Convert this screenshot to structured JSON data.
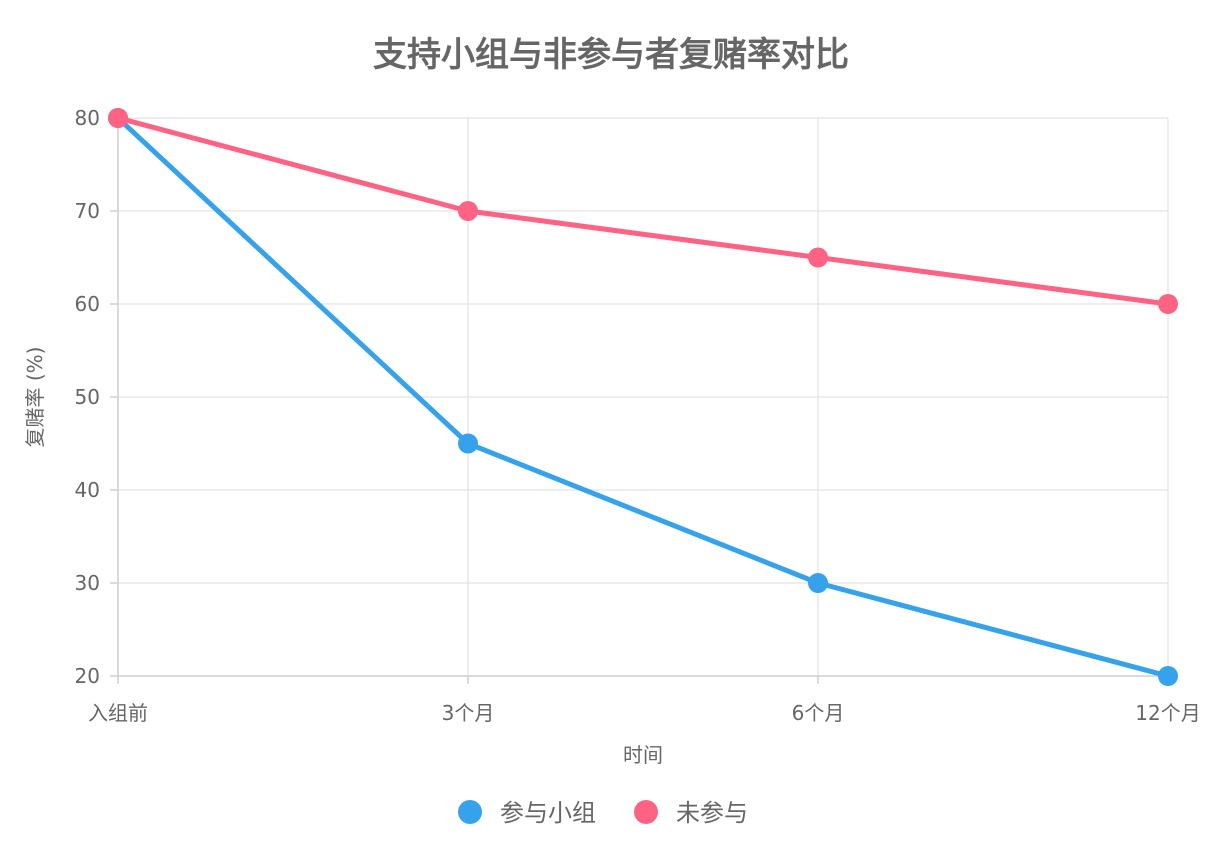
{
  "chart_data": {
    "type": "line",
    "title": "支持小组与非参与者复赌率对比",
    "xlabel": "时间",
    "ylabel": "复赌率 (%)",
    "categories": [
      "入组前",
      "3个月",
      "6个月",
      "12个月"
    ],
    "ylim": [
      20,
      80
    ],
    "yticks": [
      20,
      30,
      40,
      50,
      60,
      70,
      80
    ],
    "grid": true,
    "legend_position": "bottom",
    "series": [
      {
        "name": "参与小组",
        "color": "#36a2eb",
        "values": [
          80,
          45,
          30,
          20
        ]
      },
      {
        "name": "未参与",
        "color": "#ff6384",
        "values": [
          80,
          70,
          65,
          60
        ]
      }
    ]
  }
}
